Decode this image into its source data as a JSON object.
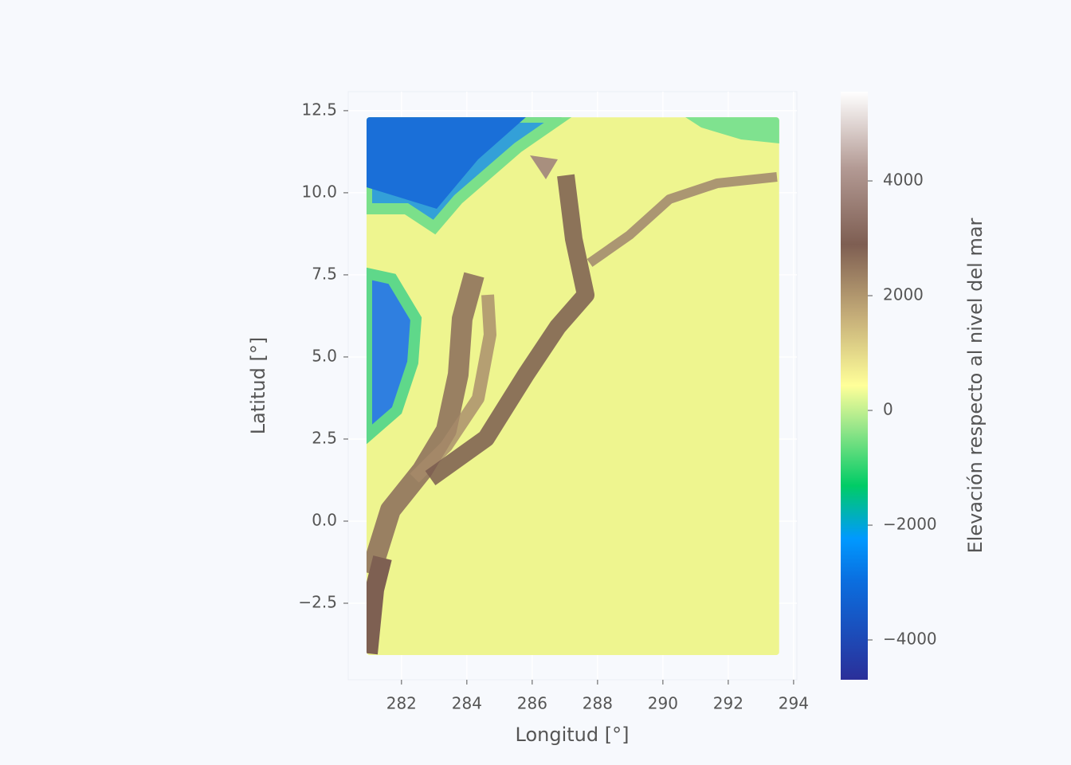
{
  "chart_data": {
    "type": "heatmap",
    "xlabel": "Longitud [°]",
    "ylabel": "Latitud [°]",
    "xlim": [
      280.37,
      294.1
    ],
    "ylim": [
      -4.83,
      13.08
    ],
    "xticks": [
      282,
      284,
      286,
      288,
      290,
      292,
      294
    ],
    "yticks": [
      {
        "value": -2.5,
        "label": "−2.5"
      },
      {
        "value": 0,
        "label": "0.0"
      },
      2.5,
      {
        "value": 5,
        "label": "5.0"
      },
      7.5,
      {
        "value": 10,
        "label": "10.0"
      },
      12.5
    ],
    "extent": [
      280.93,
      293.56,
      -4.08,
      12.3
    ],
    "grid": true,
    "colorbar": {
      "label": "Elevación respecto al nivel del mar",
      "colormap": "terrain",
      "lim": [
        -4694,
        5556
      ],
      "ticks": [
        {
          "value": -4000,
          "label": "−4000"
        },
        {
          "value": -2000,
          "label": "−2000"
        },
        0,
        2000,
        4000
      ]
    }
  }
}
